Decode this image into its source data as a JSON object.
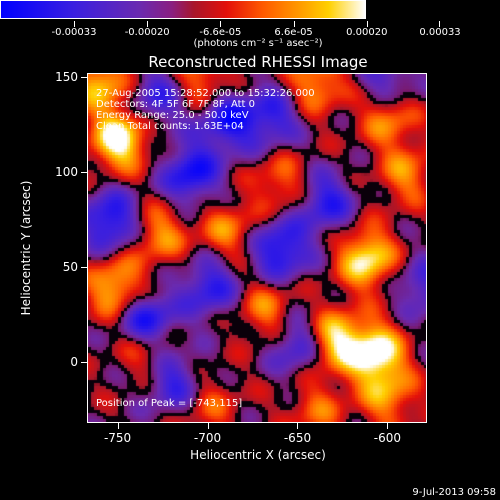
{
  "colorbar": {
    "tick_labels": [
      "-0.00033",
      "-0.00020",
      "-6.6e-05",
      "6.6e-05",
      "0.00020",
      "0.00033"
    ],
    "units": "(photons cm⁻² s⁻¹ asec⁻²)",
    "range": [
      -0.00033,
      0.00033
    ]
  },
  "title": "Reconstructed RHESSI Image",
  "info_lines": [
    "27-Aug-2005 15:28:52.000 to 15:32:26.000",
    "Detectors: 4F 5F 6F 7F 8F, Att 0",
    "Energy Range: 25.0 - 50.0 keV",
    "Clean     Total counts: 1.63E+04"
  ],
  "peak_text": "Position of Peak = [-743,115]",
  "x_axis": {
    "label": "Heliocentric X (arcsec)",
    "ticks": [
      "-750",
      "-700",
      "-650",
      "-600"
    ],
    "tick_values": [
      -750,
      -700,
      -650,
      -600
    ],
    "range": [
      -767,
      -578
    ]
  },
  "y_axis": {
    "label": "Heliocentric Y (arcsec)",
    "ticks": [
      "0",
      "50",
      "100",
      "150"
    ],
    "tick_values": [
      0,
      50,
      100,
      150
    ],
    "range": [
      -32,
      152
    ]
  },
  "footer": "9-Jul-2013 09:58",
  "colors": {
    "background": "#000000",
    "foreground": "#ffffff"
  },
  "chart_data": {
    "type": "heatmap",
    "title": "Reconstructed RHESSI Image",
    "xlabel": "Heliocentric X (arcsec)",
    "ylabel": "Heliocentric Y (arcsec)",
    "xlim": [
      -767,
      -578
    ],
    "ylim": [
      -32,
      152
    ],
    "colorbar_range": [
      -0.00033,
      0.00033
    ],
    "hotspots": [
      {
        "x": -750,
        "y": 118,
        "v": 1.0
      },
      {
        "x": -752,
        "y": 40,
        "v": 0.75
      },
      {
        "x": -728,
        "y": 68,
        "v": 0.55
      },
      {
        "x": -690,
        "y": 70,
        "v": 0.5
      },
      {
        "x": -703,
        "y": 150,
        "v": 0.5
      },
      {
        "x": -612,
        "y": 55,
        "v": 0.9
      },
      {
        "x": -607,
        "y": 5,
        "v": 1.0
      },
      {
        "x": -630,
        "y": 12,
        "v": 0.85
      },
      {
        "x": -668,
        "y": 28,
        "v": 0.5
      },
      {
        "x": -640,
        "y": 148,
        "v": 0.6
      },
      {
        "x": -600,
        "y": 130,
        "v": 0.55
      },
      {
        "x": -590,
        "y": 100,
        "v": 0.5
      },
      {
        "x": -735,
        "y": 8,
        "v": 0.5
      },
      {
        "x": -600,
        "y": -18,
        "v": 0.55
      },
      {
        "x": -660,
        "y": 95,
        "v": 0.45
      },
      {
        "x": -640,
        "y": -25,
        "v": 0.4
      },
      {
        "x": -700,
        "y": -22,
        "v": 0.35
      },
      {
        "x": -760,
        "y": 148,
        "v": 0.7
      }
    ],
    "coldspots": [
      {
        "x": -710,
        "y": 100,
        "v": -0.8
      },
      {
        "x": -755,
        "y": 75,
        "v": -0.8
      },
      {
        "x": -735,
        "y": 22,
        "v": -0.9
      },
      {
        "x": -660,
        "y": 60,
        "v": -0.8
      },
      {
        "x": -690,
        "y": 128,
        "v": -0.75
      },
      {
        "x": -700,
        "y": 40,
        "v": -0.65
      },
      {
        "x": -665,
        "y": 130,
        "v": -0.6
      },
      {
        "x": -635,
        "y": 85,
        "v": -0.65
      },
      {
        "x": -650,
        "y": 10,
        "v": -0.6
      },
      {
        "x": -720,
        "y": -10,
        "v": -0.6
      },
      {
        "x": -600,
        "y": 150,
        "v": -0.5
      },
      {
        "x": -580,
        "y": 40,
        "v": -0.5
      },
      {
        "x": -730,
        "y": 140,
        "v": -0.55
      }
    ]
  }
}
